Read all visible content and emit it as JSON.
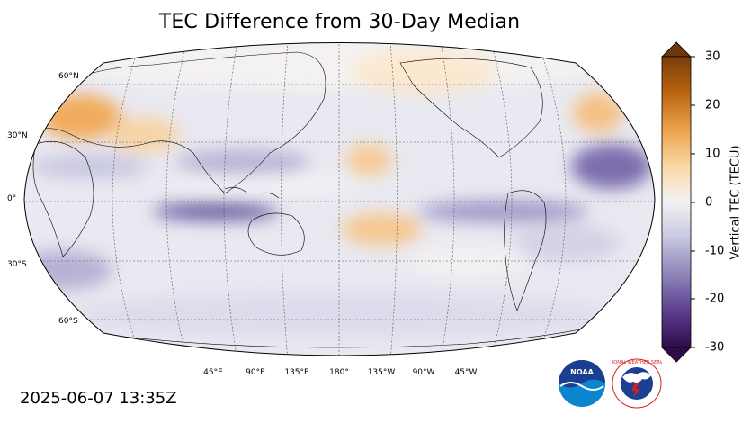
{
  "title": "TEC Difference from 30-Day Median",
  "timestamp": "2025-06-07 13:35Z",
  "colorbar": {
    "label": "Vertical TEC (TECU)",
    "ticks": [
      "30",
      "20",
      "10",
      "0",
      "-10",
      "-20",
      "-30"
    ],
    "min": -30,
    "max": 30,
    "colors": {
      "negative_end": "#3b1257",
      "neutral": "#f2f2f4",
      "positive_end": "#7a3d0a"
    }
  },
  "map": {
    "projection": "Robinson",
    "central_longitude": 180,
    "lat_labels": [
      "60°N",
      "30°N",
      "0°",
      "30°S",
      "60°S"
    ],
    "lon_labels": [
      "45°E",
      "90°E",
      "135°E",
      "180°",
      "135°W",
      "90°W",
      "45°W"
    ],
    "gridlines": true
  },
  "logos": {
    "noaa": "NOAA",
    "nws": "NATIONAL WEATHER SERVICE"
  }
}
